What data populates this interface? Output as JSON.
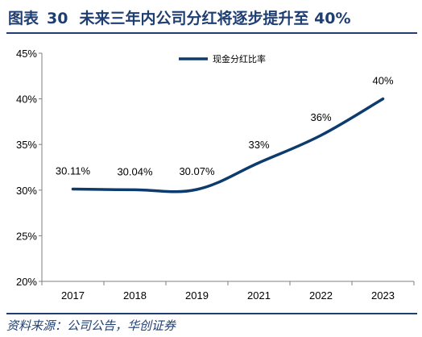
{
  "header": {
    "figure_label": "图表",
    "figure_number": "30",
    "title": "未来三年内公司分红将逐步提升至 40%"
  },
  "source_text": "资料来源：公司公告，华创证券",
  "colors": {
    "line": "#0d3b6e",
    "title": "#1f3f73",
    "axis": "#7f7f7f"
  },
  "chart_data": {
    "type": "line",
    "categories": [
      "2017",
      "2018",
      "2019",
      "2021",
      "2022",
      "2023"
    ],
    "series": [
      {
        "name": "现金分红比率",
        "values": [
          30.11,
          30.04,
          30.07,
          33,
          36,
          40
        ]
      }
    ],
    "data_labels": [
      "30.11%",
      "30.04%",
      "30.07%",
      "33%",
      "36%",
      "40%"
    ],
    "y_ticks": [
      "20%",
      "25%",
      "30%",
      "35%",
      "40%",
      "45%"
    ],
    "ylim": [
      20,
      45
    ],
    "y_unit": "%",
    "grid": false,
    "legend_position": "top-center",
    "smooth": true
  }
}
